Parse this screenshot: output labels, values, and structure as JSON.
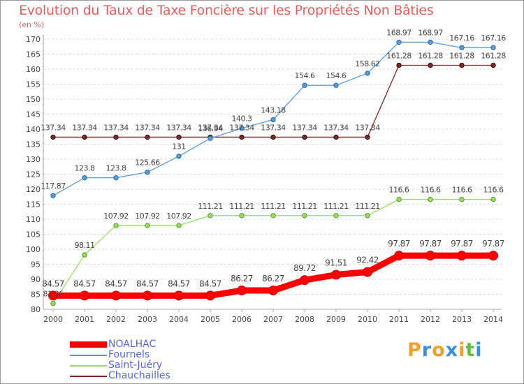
{
  "chart_data": {
    "type": "line",
    "title": "Evolution du Taux de Taxe Foncière sur les Propriétés Non Bâties",
    "ylabel": "(en %)",
    "ylim": [
      80,
      170
    ],
    "yticks": [
      80,
      85,
      90,
      95,
      100,
      105,
      110,
      115,
      120,
      125,
      130,
      135,
      140,
      145,
      150,
      155,
      160,
      165,
      170
    ],
    "x": [
      "2000",
      "2001",
      "2002",
      "2003",
      "2004",
      "2005",
      "2006",
      "2007",
      "2008",
      "2009",
      "2010",
      "2011",
      "2012",
      "2013",
      "2014"
    ],
    "grid": "horizontal dashed",
    "legend_position": "bottom-left",
    "series": [
      {
        "name": "NOALHAC",
        "color": "#ff0000",
        "values": [
          84.57,
          84.57,
          84.57,
          84.57,
          84.57,
          84.57,
          86.27,
          86.27,
          89.72,
          91.51,
          92.42,
          97.87,
          97.87,
          97.87,
          97.87
        ],
        "labels": [
          "84.57",
          "84.57",
          "84.57",
          "84.57",
          "84.57",
          "84.57",
          "86.27",
          "86.27",
          "89.72",
          "91.51",
          "92.42",
          "97.87",
          "97.87",
          "97.87",
          "97.87"
        ]
      },
      {
        "name": "Fournels",
        "color": "#5b9bd5",
        "values": [
          117.87,
          123.8,
          123.8,
          125.66,
          131,
          136.94,
          140.3,
          143.18,
          154.6,
          154.6,
          158.62,
          168.97,
          168.97,
          167.16,
          167.16
        ],
        "labels": [
          "117.87",
          "123.8",
          "123.8",
          "125.66",
          "131",
          "136.94",
          "140.3",
          "143.18",
          "154.6",
          "154.6",
          "158.62",
          "168.97",
          "168.97",
          "167.16",
          "167.16"
        ]
      },
      {
        "name": "Saint-Juéry",
        "color": "#99dd66",
        "values": [
          81.96,
          98.11,
          107.92,
          107.92,
          107.92,
          111.21,
          111.21,
          111.21,
          111.21,
          111.21,
          111.21,
          116.6,
          116.6,
          116.6,
          116.6
        ],
        "labels": [
          "81.96",
          "98.11",
          "107.92",
          "107.92",
          "107.92",
          "111.21",
          "111.21",
          "111.21",
          "111.21",
          "111.21",
          "111.21",
          "116.6",
          "116.6",
          "116.6",
          "116.6"
        ]
      },
      {
        "name": "Chauchailles",
        "color": "#7a2a2a",
        "values": [
          137.34,
          137.34,
          137.34,
          137.34,
          137.34,
          137.34,
          137.34,
          137.34,
          137.34,
          137.34,
          137.34,
          161.28,
          161.28,
          161.28,
          161.28
        ],
        "labels": [
          "137.34",
          "137.34",
          "137.34",
          "137.34",
          "137.34",
          "137.34",
          "137.34",
          "137.34",
          "137.34",
          "137.34",
          "137.34",
          "161.28",
          "161.28",
          "161.28",
          "161.28"
        ]
      }
    ]
  },
  "brand": {
    "letters": [
      "P",
      "r",
      "o",
      "x",
      "i",
      "t",
      "i"
    ],
    "colors": [
      "#f0a030",
      "#3d8fd6",
      "#f0a030",
      "#3d8fd6",
      "#f0a030",
      "#66bb44",
      "#3d8fd6"
    ]
  }
}
